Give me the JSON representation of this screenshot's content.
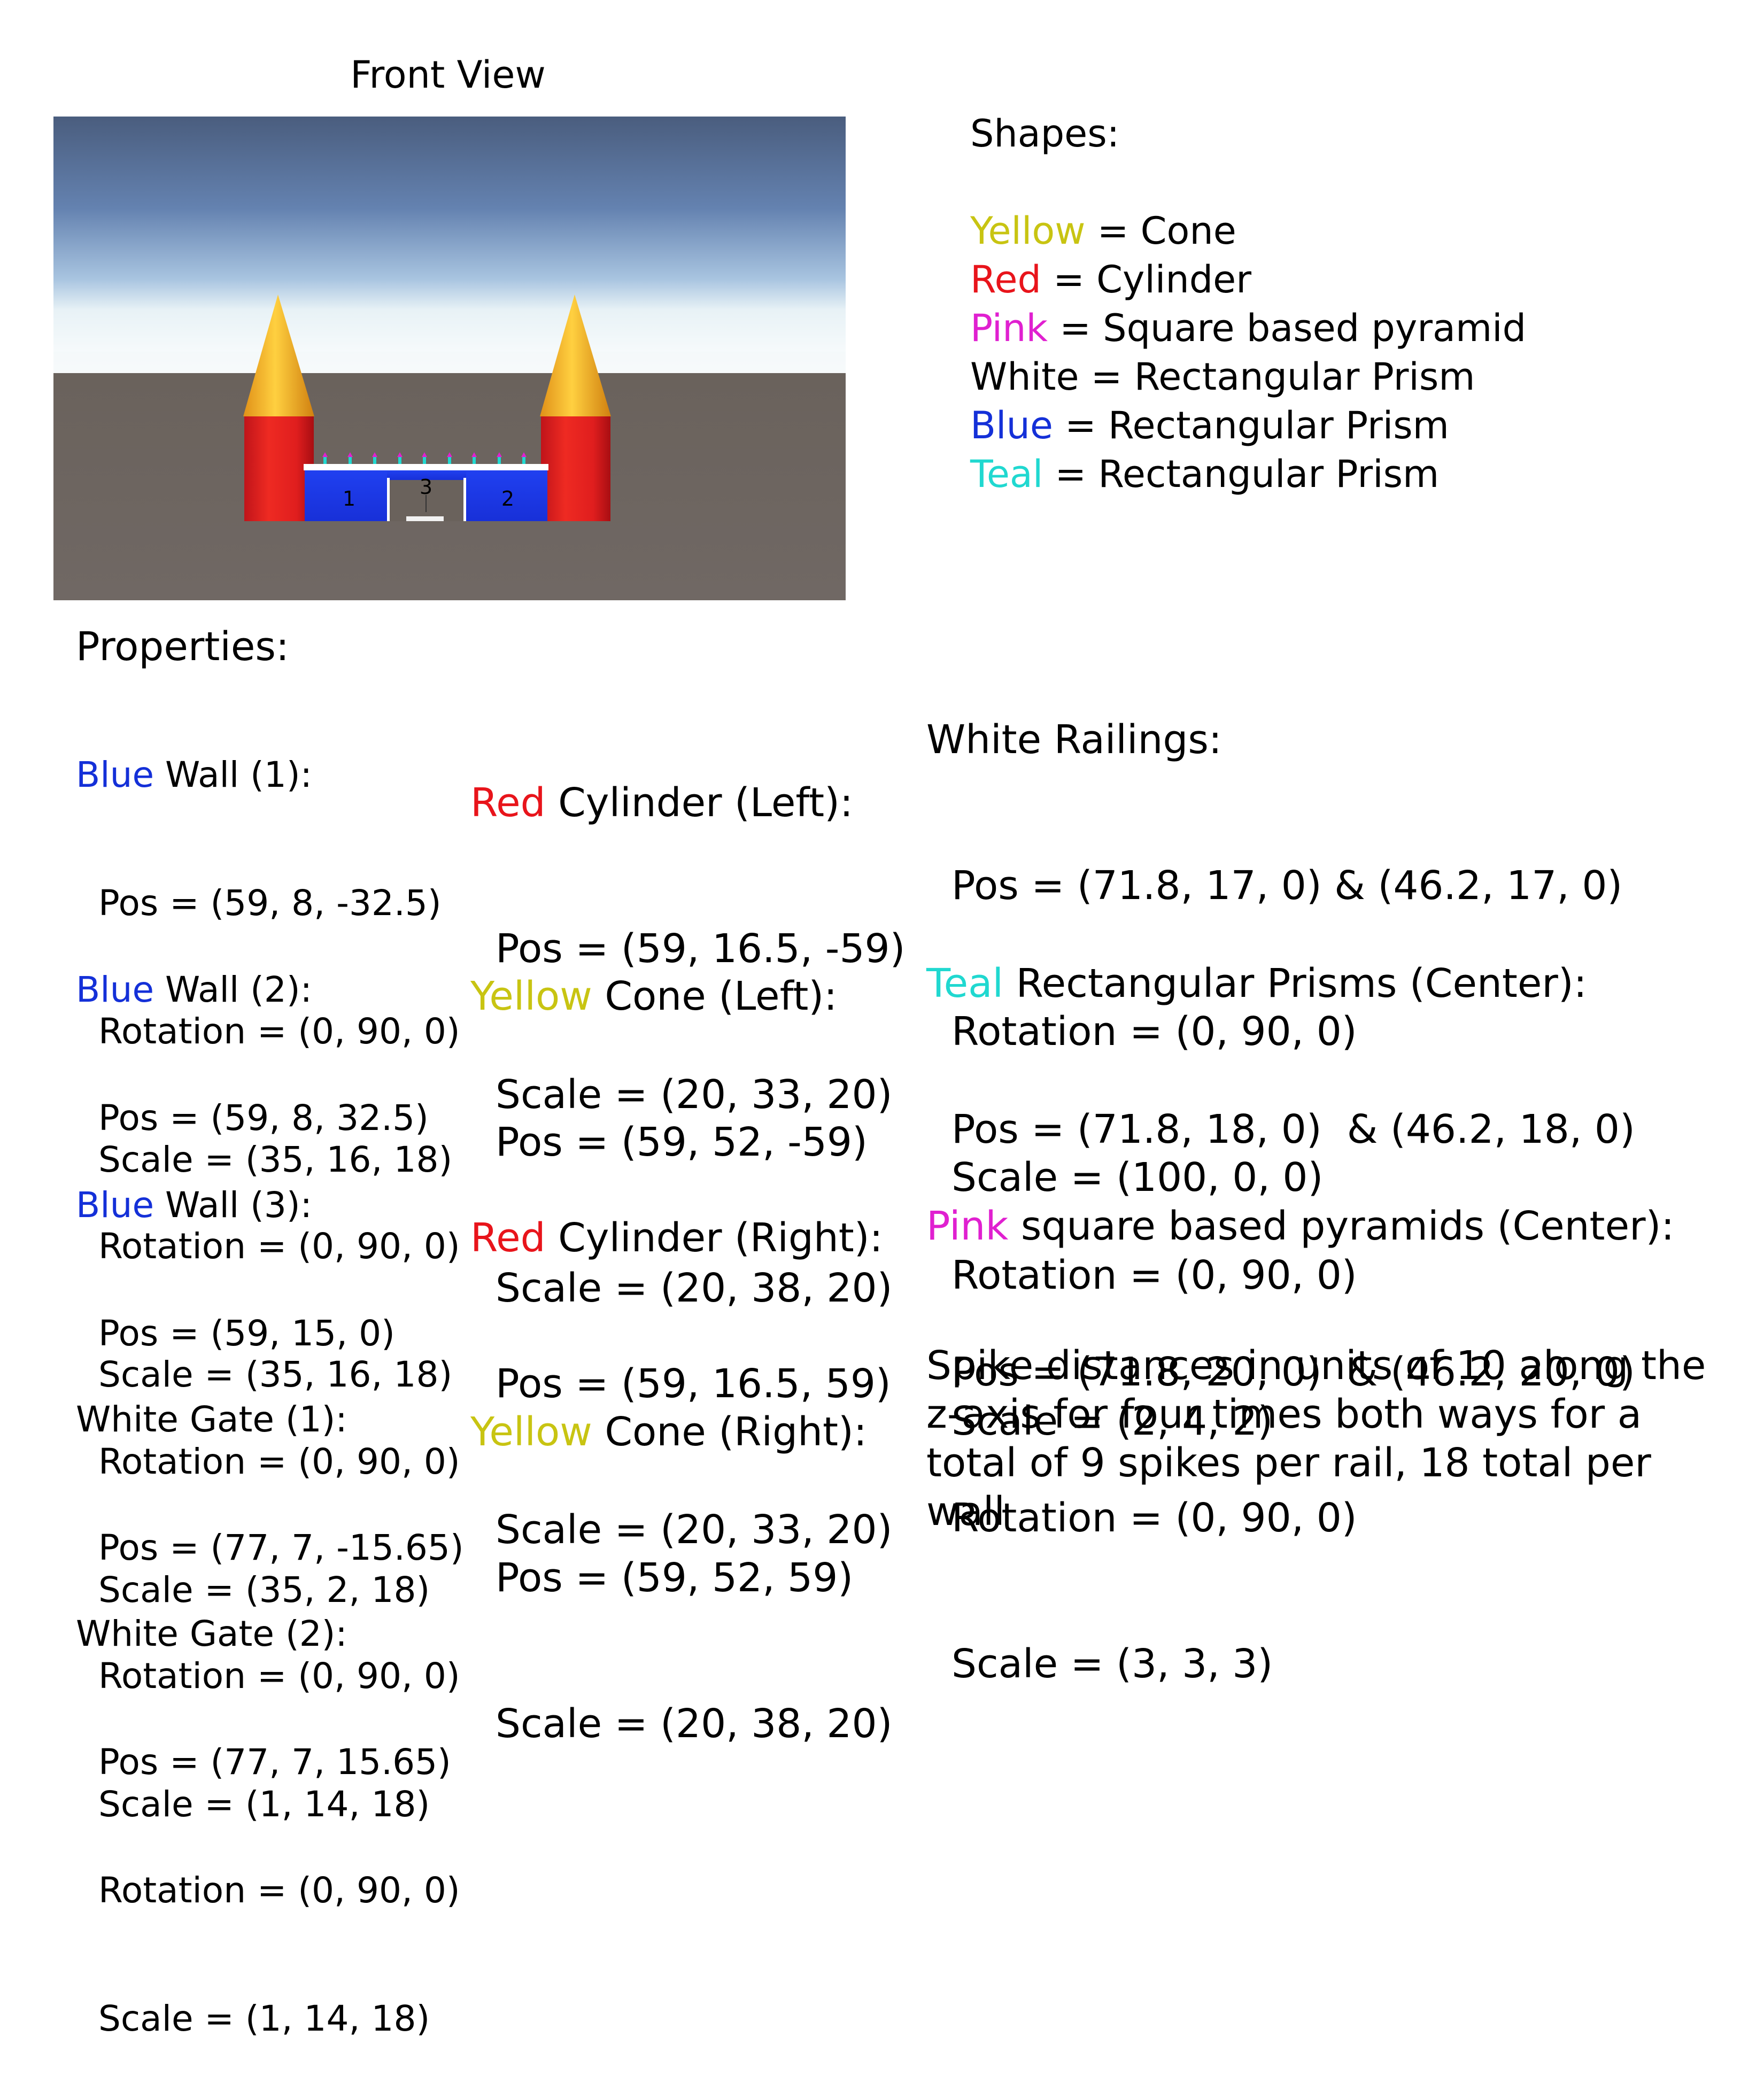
{
  "title": "Front View",
  "colors": {
    "yellow": "#c8c412",
    "red": "#e8141b",
    "pink": "#e020d0",
    "blue": "#1430d8",
    "teal": "#20d8d0",
    "white_wall": "#ffffff"
  },
  "scene": {
    "labels": [
      "1",
      "3",
      "2"
    ]
  },
  "legend": {
    "title": "Shapes:",
    "items": [
      {
        "color_word": "Yellow",
        "text": " = Cone",
        "color": "#c8c412"
      },
      {
        "color_word": "Red",
        "text": " = Cylinder",
        "color": "#e8141b"
      },
      {
        "color_word": "Pink",
        "text": " = Square based pyramid",
        "color": "#e020d0"
      },
      {
        "color_word": "White",
        "text": " = Rectangular Prism",
        "color": "#000000"
      },
      {
        "color_word": "Blue",
        "text": " = Rectangular Prism",
        "color": "#1430d8"
      },
      {
        "color_word": "Teal",
        "text": " = Rectangular Prism",
        "color": "#20d8d0"
      }
    ]
  },
  "properties": {
    "title": "Properties:",
    "blue_wall_1": {
      "color_word": "Blue",
      "name": " Wall (1):",
      "pos": "Pos = (59, 8, -32.5)",
      "rotation": "Rotation = (0, 90, 0)",
      "scale": "Scale = (35, 16, 18)"
    },
    "blue_wall_2": {
      "color_word": "Blue",
      "name": " Wall (2):",
      "pos": "Pos = (59, 8, 32.5)",
      "rotation": "Rotation = (0, 90, 0)",
      "scale": "Scale = (35, 16, 18)"
    },
    "blue_wall_3": {
      "color_word": "Blue",
      "name": " Wall (3):",
      "pos": "Pos = (59, 15, 0)",
      "rotation": "Rotation = (0, 90, 0)",
      "scale": "Scale = (35, 2, 18)"
    },
    "white_gate_1": {
      "name": "White Gate (1):",
      "pos": "Pos = (77, 7, -15.65)",
      "rotation": "Rotation = (0, 90, 0)",
      "scale": "Scale = (1, 14, 18)"
    },
    "white_gate_2": {
      "name": "White Gate (2):",
      "pos": "Pos = (77, 7, 15.65)",
      "rotation": "Rotation = (0, 90, 0)",
      "scale": "Scale = (1, 14, 18)"
    },
    "red_cyl_left": {
      "color_word": "Red",
      "name": " Cylinder (Left):",
      "pos": "Pos = (59, 16.5, -59)",
      "scale": "Scale = (20, 33, 20)"
    },
    "yellow_cone_left": {
      "color_word": "Yellow",
      "name": " Cone (Left):",
      "pos": "Pos = (59, 52, -59)",
      "scale": "Scale = (20, 38, 20)"
    },
    "red_cyl_right": {
      "color_word": "Red",
      "name": " Cylinder (Right):",
      "pos": "Pos = (59, 16.5, 59)",
      "scale": "Scale = (20, 33, 20)"
    },
    "yellow_cone_right": {
      "color_word": "Yellow",
      "name": " Cone (Right):",
      "pos": "Pos = (59, 52, 59)",
      "scale": "Scale = (20, 38, 20)"
    },
    "white_railings": {
      "name": "White Railings:",
      "pos": "Pos = (71.8, 17, 0) & (46.2, 17, 0)",
      "rotation": "Rotation = (0, 90, 0)",
      "scale": "Scale = (100, 0, 0)"
    },
    "teal_prisms": {
      "color_word": "Teal",
      "name": " Rectangular Prisms (Center):",
      "pos": "Pos = (71.8, 18, 0)  & (46.2, 18, 0)",
      "rotation": "Rotation = (0, 90, 0)",
      "scale": "Scale = (2, 4, 2)"
    },
    "pink_pyramids": {
      "color_word": "Pink",
      "name": " square based pyramids (Center):",
      "pos": "Pos = (71.8, 20, 0)  & (46.2, 20, 0)",
      "rotation": "Rotation = (0, 90, 0)",
      "scale": "Scale = (3, 3, 3)"
    }
  },
  "note": "Spike distances in units of 10 along the z-axis for four times both ways for a total of 9 spikes per rail, 18 total per wall"
}
